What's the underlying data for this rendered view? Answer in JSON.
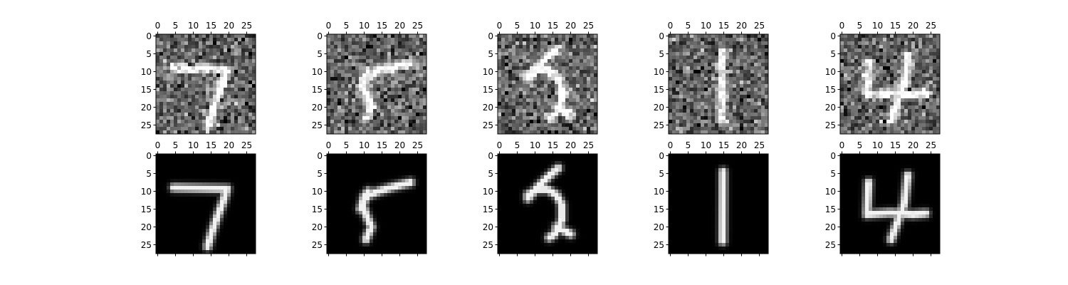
{
  "chart_data": {
    "type": "heatmap",
    "layout": {
      "rows": 2,
      "cols": 5
    },
    "image_size": [
      28,
      28
    ],
    "colormap": "gray",
    "row_roles": [
      "noisy",
      "denoised"
    ],
    "x_ticks": [
      "0",
      "5",
      "10",
      "15",
      "20",
      "25"
    ],
    "y_ticks": [
      "0",
      "5",
      "10",
      "15",
      "20",
      "25"
    ],
    "x_tick_position": "top",
    "x_tick_labels_shown_on_bottom_row": true,
    "bottom_axis_tick_marks_without_labels": true,
    "grid": false,
    "legend": "none",
    "noise": {
      "background_mean": 0.38,
      "std": 0.16,
      "digit_intensity": 0.68
    },
    "digits": [
      {
        "label": "7",
        "strokes": [
          [
            [
              9,
              4.5
            ],
            [
              9.3,
              19.5
            ]
          ],
          [
            [
              9.3,
              19.5
            ],
            [
              12.5,
              18.5
            ],
            [
              17,
              16.8
            ],
            [
              21.5,
              15.2
            ],
            [
              25.5,
              14
            ]
          ]
        ]
      },
      {
        "label": "5",
        "strokes": [
          [
            [
              7.5,
              23
            ],
            [
              8.8,
              18
            ],
            [
              10,
              14
            ],
            [
              11.2,
              11
            ]
          ],
          [
            [
              11.2,
              11
            ],
            [
              13.5,
              9.5
            ],
            [
              16.5,
              10.5
            ],
            [
              20,
              12
            ],
            [
              23.5,
              10.5
            ]
          ],
          [
            [
              10,
              11.2
            ],
            [
              11.5,
              10
            ],
            [
              15,
              9
            ]
          ]
        ]
      },
      {
        "label": "2",
        "strokes": [
          [
            [
              11,
              8
            ],
            [
              9.5,
              10.5
            ],
            [
              9.5,
              13.5
            ],
            [
              11,
              16
            ],
            [
              13.8,
              17.5
            ],
            [
              18,
              17.5
            ],
            [
              22,
              15.5
            ],
            [
              23,
              14
            ]
          ],
          [
            [
              12,
              8
            ],
            [
              8.5,
              11
            ],
            [
              5.2,
              14.5
            ],
            [
              3.5,
              16.5
            ]
          ],
          [
            [
              20,
              16
            ],
            [
              22,
              20
            ]
          ]
        ]
      },
      {
        "label": "1",
        "strokes": [
          [
            [
              4.5,
              14.8
            ],
            [
              24,
              14.7
            ]
          ]
        ]
      },
      {
        "label": "4",
        "strokes": [
          [
            [
              7.5,
              7.5
            ],
            [
              16.5,
              7
            ]
          ],
          [
            [
              16.5,
              7
            ],
            [
              16,
              13.5
            ],
            [
              16.5,
              20
            ],
            [
              16.2,
              23.5
            ]
          ],
          [
            [
              5.5,
              18.5
            ],
            [
              13.5,
              17.5
            ],
            [
              23.5,
              13.8
            ]
          ]
        ]
      }
    ]
  }
}
